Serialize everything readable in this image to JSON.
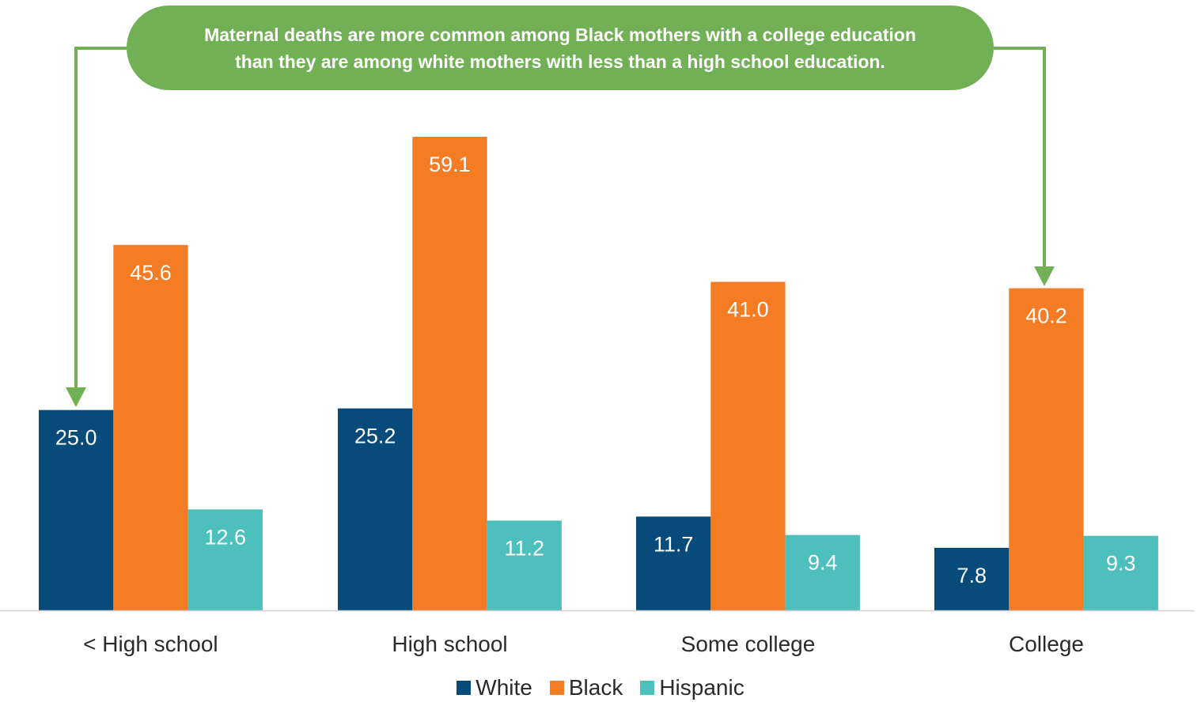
{
  "callout": {
    "line1": "Maternal deaths are more common among Black mothers with a college education",
    "line2": "than they are among white mothers with less than a high school education."
  },
  "colors": {
    "white": "#064b7a",
    "black": "#f47c24",
    "hispanic": "#4dbfbc",
    "callout": "#72b055"
  },
  "chart_data": {
    "type": "bar",
    "categories": [
      "< High school",
      "High school",
      "Some college",
      "College"
    ],
    "series": [
      {
        "name": "White",
        "values": [
          25.0,
          25.2,
          11.7,
          7.8
        ],
        "labels": [
          "25.0",
          "25.2",
          "11.7",
          "7.8"
        ]
      },
      {
        "name": "Black",
        "values": [
          45.6,
          59.1,
          41.0,
          40.2
        ],
        "labels": [
          "45.6",
          "59.1",
          "41.0",
          "40.2"
        ]
      },
      {
        "name": "Hispanic",
        "values": [
          12.6,
          11.2,
          9.4,
          9.3
        ],
        "labels": [
          "12.6",
          "11.2",
          "9.4",
          "9.3"
        ]
      }
    ],
    "title": "",
    "xlabel": "",
    "ylabel": "",
    "ylim": [
      0,
      59.1
    ],
    "grid": false,
    "legend": "bottom"
  }
}
